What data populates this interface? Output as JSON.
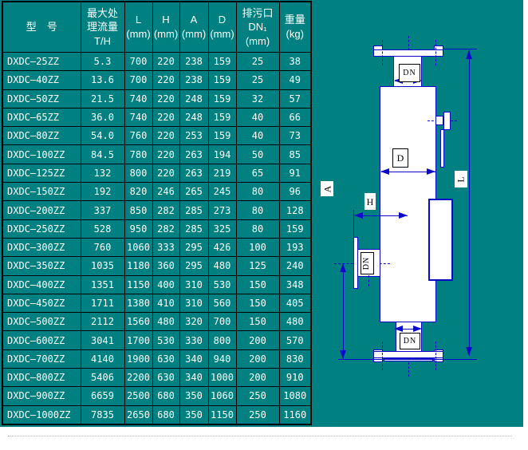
{
  "table": {
    "headers": [
      [
        "型　号"
      ],
      [
        "最大处",
        "理流量",
        "T/H"
      ],
      [
        "L",
        "(mm)"
      ],
      [
        "H",
        "(mm)"
      ],
      [
        "A",
        "(mm)"
      ],
      [
        "D",
        "(mm)"
      ],
      [
        "排污口",
        "DN₁",
        "(mm)"
      ],
      [
        "重量",
        "(kg)"
      ]
    ],
    "rows": [
      [
        "DXDC—25ZZ",
        "5.3",
        "700",
        "220",
        "238",
        "159",
        "25",
        "38"
      ],
      [
        "DXDC—40ZZ",
        "13.6",
        "700",
        "220",
        "238",
        "159",
        "25",
        "49"
      ],
      [
        "DXDC—50ZZ",
        "21.5",
        "740",
        "220",
        "248",
        "159",
        "32",
        "57"
      ],
      [
        "DXDC—65ZZ",
        "36.0",
        "740",
        "220",
        "248",
        "159",
        "40",
        "66"
      ],
      [
        "DXDC—80ZZ",
        "54.0",
        "760",
        "220",
        "253",
        "159",
        "40",
        "73"
      ],
      [
        "DXDC—100ZZ",
        "84.5",
        "780",
        "220",
        "263",
        "194",
        "50",
        "85"
      ],
      [
        "DXDC—125ZZ",
        "132",
        "800",
        "220",
        "263",
        "219",
        "65",
        "91"
      ],
      [
        "DXDC—150ZZ",
        "192",
        "820",
        "246",
        "265",
        "245",
        "80",
        "96"
      ],
      [
        "DXDC—200ZZ",
        "337",
        "850",
        "282",
        "285",
        "273",
        "80",
        "128"
      ],
      [
        "DXDC—250ZZ",
        "528",
        "950",
        "282",
        "285",
        "325",
        "80",
        "159"
      ],
      [
        "DXDC—300ZZ",
        "760",
        "1060",
        "333",
        "295",
        "426",
        "100",
        "193"
      ],
      [
        "DXDC—350ZZ",
        "1035",
        "1180",
        "360",
        "295",
        "480",
        "125",
        "240"
      ],
      [
        "DXDC—400ZZ",
        "1351",
        "1150",
        "400",
        "310",
        "530",
        "150",
        "348"
      ],
      [
        "DXDC—450ZZ",
        "1711",
        "1380",
        "410",
        "310",
        "560",
        "150",
        "405"
      ],
      [
        "DXDC—500ZZ",
        "2112",
        "1560",
        "480",
        "320",
        "700",
        "150",
        "480"
      ],
      [
        "DXDC—600ZZ",
        "3041",
        "1700",
        "530",
        "330",
        "800",
        "200",
        "570"
      ],
      [
        "DXDC—700ZZ",
        "4140",
        "1900",
        "630",
        "340",
        "940",
        "200",
        "830"
      ],
      [
        "DXDC—800ZZ",
        "5406",
        "2200",
        "630",
        "340",
        "1000",
        "200",
        "910"
      ],
      [
        "DXDC—900ZZ",
        "6659",
        "2500",
        "680",
        "350",
        "1060",
        "250",
        "1080"
      ],
      [
        "DXDC—1000ZZ",
        "7835",
        "2650",
        "680",
        "350",
        "1150",
        "250",
        "1160"
      ]
    ]
  },
  "diagram": {
    "labels": {
      "dn_top": "DN",
      "dn_side": "DN",
      "dn_bottom": "DN",
      "d": "D",
      "h": "H",
      "a": "A",
      "l": "L"
    }
  },
  "colors": {
    "background": "#008080",
    "drawing_line": "#0a0ac8",
    "table_text": "#ffffff",
    "grid": "#000000"
  }
}
